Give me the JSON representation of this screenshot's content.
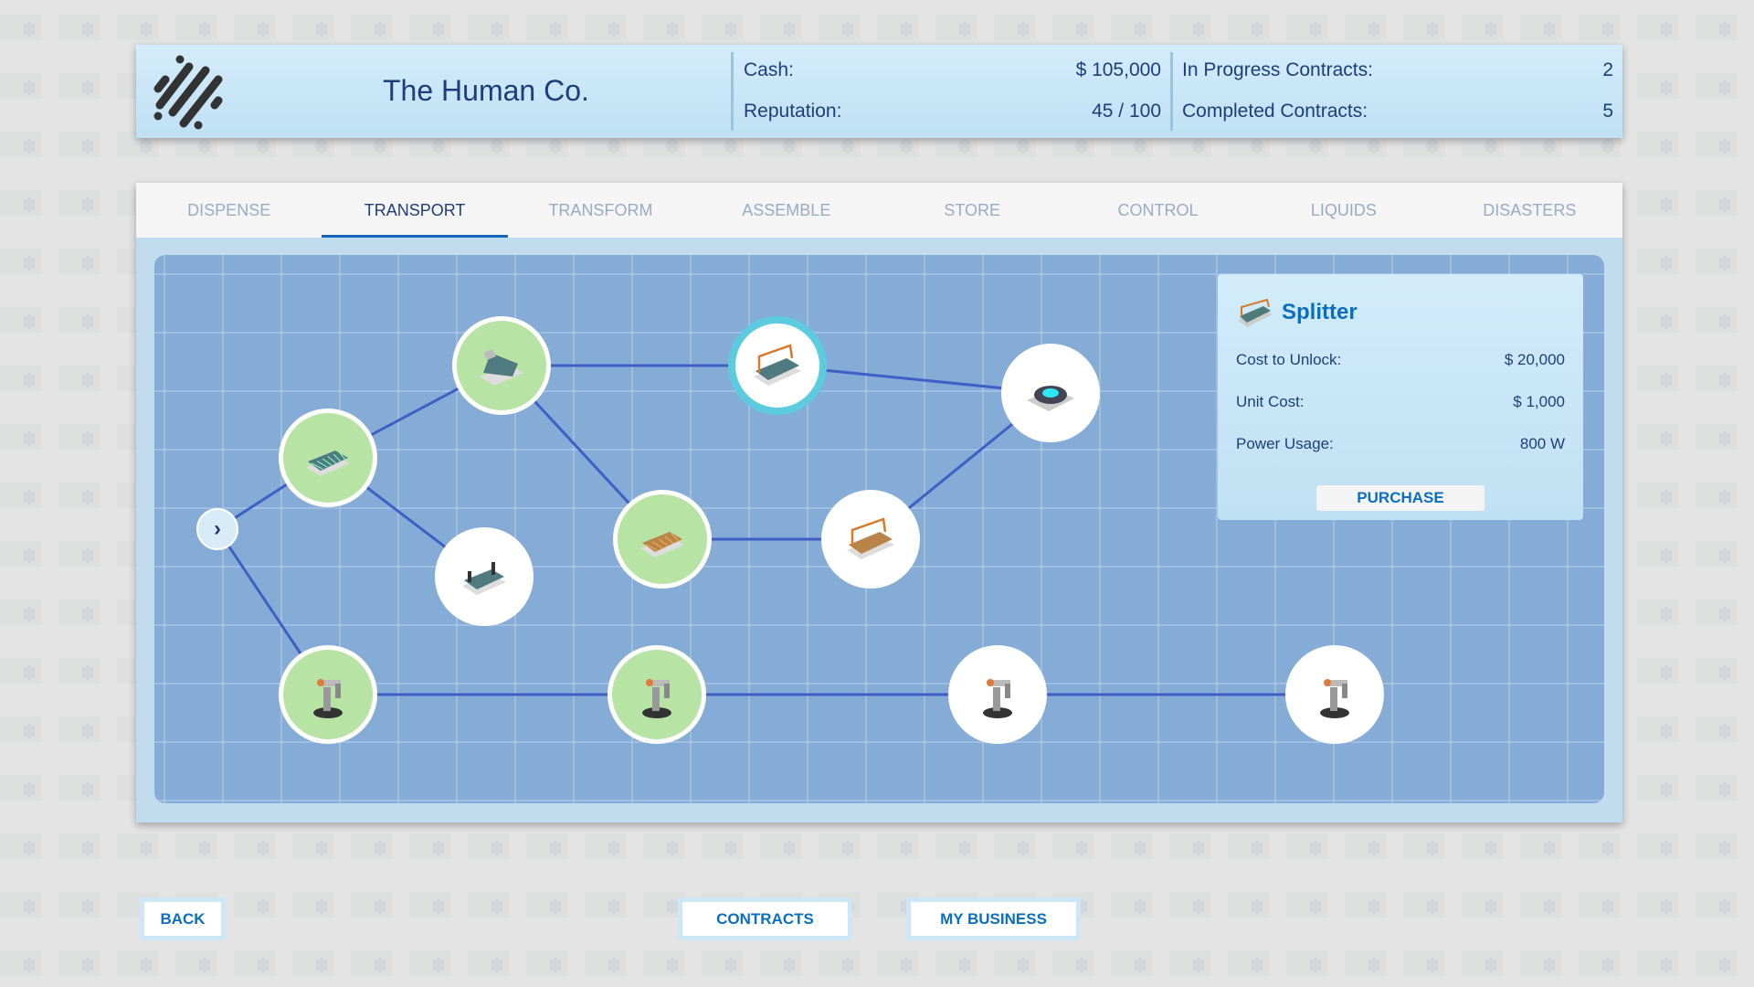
{
  "header": {
    "company_name": "The Human Co.",
    "cash_label": "Cash:",
    "cash_value": "$ 105,000",
    "reputation_label": "Reputation:",
    "reputation_value": "45 / 100",
    "in_progress_label": "In Progress Contracts:",
    "in_progress_value": "2",
    "completed_label": "Completed Contracts:",
    "completed_value": "5"
  },
  "tabs": [
    {
      "label": "DISPENSE",
      "active": false
    },
    {
      "label": "TRANSPORT",
      "active": true
    },
    {
      "label": "TRANSFORM",
      "active": false
    },
    {
      "label": "ASSEMBLE",
      "active": false
    },
    {
      "label": "STORE",
      "active": false
    },
    {
      "label": "CONTROL",
      "active": false
    },
    {
      "label": "LIQUIDS",
      "active": false
    },
    {
      "label": "DISASTERS",
      "active": false
    }
  ],
  "tech_tree": {
    "nodes": [
      {
        "id": "conveyor",
        "icon": "conveyor-icon",
        "state": "unlocked"
      },
      {
        "id": "ramp",
        "icon": "conveyor-ramp-icon",
        "state": "unlocked"
      },
      {
        "id": "conveyor-sensor",
        "icon": "conveyor-sensor-icon",
        "state": "locked"
      },
      {
        "id": "splitter",
        "icon": "splitter-icon",
        "state": "selected"
      },
      {
        "id": "turntable",
        "icon": "turntable-icon",
        "state": "locked"
      },
      {
        "id": "roller",
        "icon": "roller-conveyor-icon",
        "state": "unlocked"
      },
      {
        "id": "roller-splitter",
        "icon": "roller-splitter-icon",
        "state": "locked"
      },
      {
        "id": "robot-arm",
        "icon": "robot-arm-icon",
        "state": "unlocked"
      },
      {
        "id": "robot-arm-2",
        "icon": "robot-arm-icon",
        "state": "unlocked"
      },
      {
        "id": "robot-arm-3",
        "icon": "robot-arm-icon",
        "state": "locked"
      },
      {
        "id": "robot-arm-4",
        "icon": "robot-arm-icon",
        "state": "locked"
      }
    ]
  },
  "info": {
    "title": "Splitter",
    "cost_unlock_label": "Cost to Unlock:",
    "cost_unlock_value": "$ 20,000",
    "unit_cost_label": "Unit Cost:",
    "unit_cost_value": "$ 1,000",
    "power_label": "Power Usage:",
    "power_value": "800 W",
    "purchase_label": "PURCHASE"
  },
  "buttons": {
    "back": "BACK",
    "contracts": "CONTRACTS",
    "my_business": "MY BUSINESS"
  },
  "colors": {
    "accent": "#0b6fc0",
    "text": "#1f3d7a",
    "unlocked": "#b7e3a5",
    "selected_ring": "#5ccbe0",
    "edge": "#3f5fc4"
  }
}
